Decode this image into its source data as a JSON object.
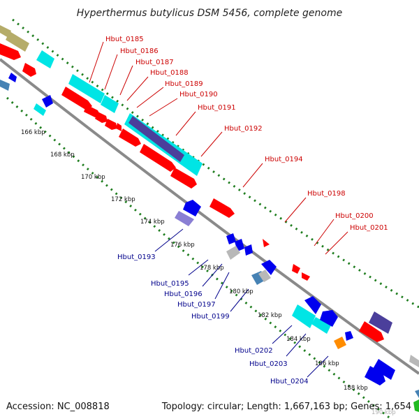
{
  "title": "Hyperthermus butylicus DSM 5456, complete genome",
  "footer": {
    "accession": "Accession: NC_008818",
    "summary": "Topology: circular; Length: 1,667,163 bp; Genes: 1,654"
  },
  "ticks": [
    "166 kbp",
    "168 kbp",
    "170 kbp",
    "172 kbp",
    "174 kbp",
    "176 kbp",
    "178 kbp",
    "180 kbp",
    "182 kbp",
    "184 kbp",
    "186 kbp",
    "188 kbp",
    "190 kbp"
  ],
  "forward_labels": [
    "Hbut_0185",
    "Hbut_0186",
    "Hbut_0187",
    "Hbut_0188",
    "Hbut_0189",
    "Hbut_0190",
    "Hbut_0191",
    "Hbut_0192",
    "Hbut_0194",
    "Hbut_0198",
    "Hbut_0200",
    "Hbut_0201"
  ],
  "reverse_labels": [
    "Hbut_0193",
    "Hbut_0195",
    "Hbut_0196",
    "Hbut_0197",
    "Hbut_0199",
    "Hbut_0202",
    "Hbut_0203",
    "Hbut_0204"
  ],
  "colors": {
    "forward_gene": "#ff0000",
    "reverse_gene": "#0000ee",
    "cyan_feature": "#00e5e5",
    "purple_feature": "#4b3f9b",
    "tan_feature": "#b5ac69",
    "orange_feature": "#ff8c00",
    "gray_feature": "#b8b8b8",
    "steel_feature": "#4682b4",
    "green_feature": "#22bb22",
    "backbone": "#8a8a8a",
    "dotted_ring": "#1e7d1e"
  }
}
